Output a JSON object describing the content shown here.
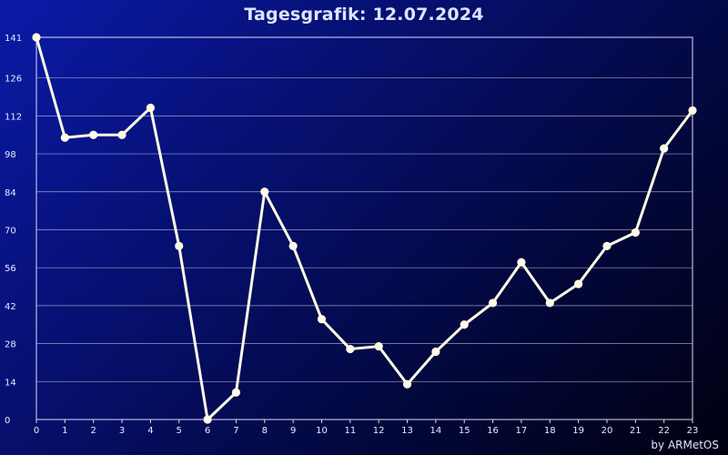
{
  "header": {
    "title": "Tagesgrafik: 12.07.2024"
  },
  "footer": {
    "credit": "by ARMetOS"
  },
  "colors": {
    "line": "#fffbe6",
    "marker": "#fffbe6",
    "grid": "#c8cfe8",
    "axis": "#d8deff"
  },
  "chart_data": {
    "type": "line",
    "title": "Tagesgrafik: 12.07.2024",
    "xlabel": "",
    "ylabel": "",
    "grid": true,
    "xlim": [
      0,
      23
    ],
    "ylim": [
      0,
      141
    ],
    "x_ticks": [
      "0",
      "1",
      "2",
      "3",
      "4",
      "5",
      "6",
      "7",
      "8",
      "9",
      "10",
      "11",
      "12",
      "13",
      "14",
      "15",
      "16",
      "17",
      "18",
      "19",
      "20",
      "21",
      "22",
      "23"
    ],
    "y_ticks": [
      "0",
      "14",
      "28",
      "42",
      "56",
      "70",
      "84",
      "98",
      "112",
      "126",
      "141"
    ],
    "series": [
      {
        "x": [
          0,
          1,
          2,
          3,
          4,
          5,
          6,
          7,
          8,
          9,
          10,
          11,
          12,
          13,
          14,
          15,
          16,
          17,
          18,
          19,
          20,
          21,
          22,
          23
        ],
        "values": [
          141,
          104,
          105,
          105,
          115,
          64,
          0,
          10,
          84,
          64,
          37,
          26,
          27,
          13,
          25,
          35,
          43,
          58,
          43,
          50,
          64,
          69,
          100,
          114
        ]
      }
    ]
  }
}
